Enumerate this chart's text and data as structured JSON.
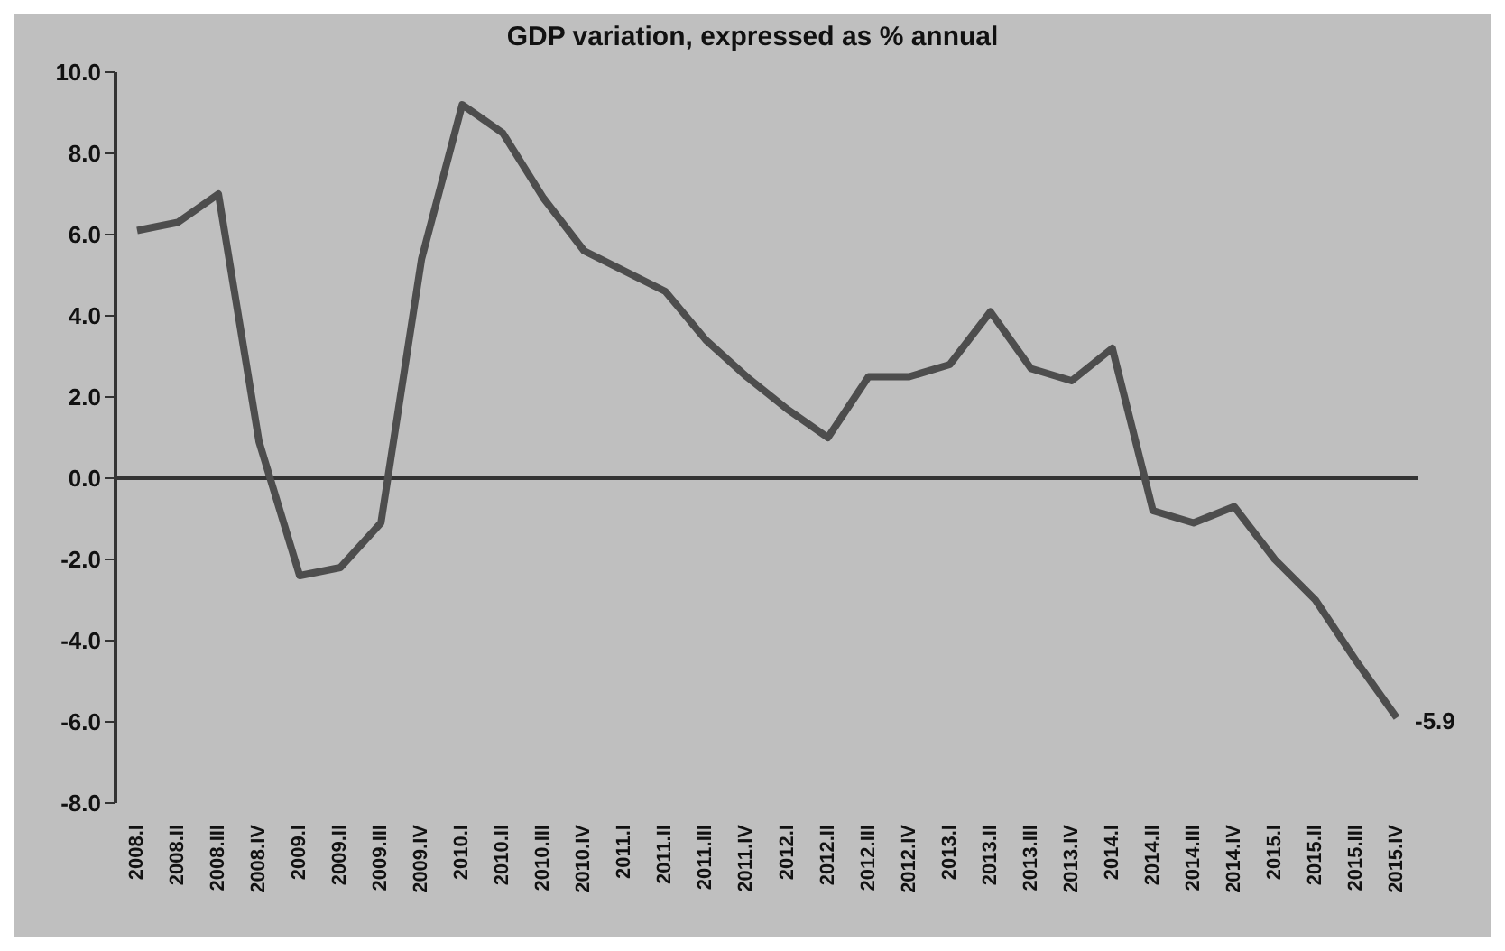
{
  "chart_data": {
    "type": "line",
    "title": "GDP variation, expressed as % annual",
    "categories": [
      "2008.I",
      "2008.II",
      "2008.III",
      "2008.IV",
      "2009.I",
      "2009.II",
      "2009.III",
      "2009.IV",
      "2010.I",
      "2010.II",
      "2010.III",
      "2010.IV",
      "2011.I",
      "2011.II",
      "2011.III",
      "2011.IV",
      "2012.I",
      "2012.II",
      "2012.III",
      "2012.IV",
      "2013.I",
      "2013.II",
      "2013.III",
      "2013.IV",
      "2014.I",
      "2014.II",
      "2014.III",
      "2014.IV",
      "2015.I",
      "2015.II",
      "2015.III",
      "2015.IV"
    ],
    "series": [
      {
        "color": "#4d4d4d",
        "values": [
          6.1,
          6.3,
          7.0,
          0.9,
          -2.4,
          -2.2,
          -1.1,
          5.4,
          9.2,
          8.5,
          6.9,
          5.6,
          5.1,
          4.6,
          3.4,
          2.5,
          1.7,
          1.0,
          2.5,
          2.5,
          2.8,
          4.1,
          2.7,
          2.4,
          3.2,
          -0.8,
          -1.1,
          -0.7,
          -2.0,
          -3.0,
          -4.5,
          -5.9
        ],
        "value_labels": [
          null,
          null,
          null,
          null,
          null,
          null,
          null,
          null,
          null,
          null,
          null,
          null,
          null,
          null,
          null,
          null,
          null,
          null,
          null,
          null,
          null,
          null,
          null,
          null,
          null,
          null,
          null,
          null,
          null,
          null,
          null,
          "-5.9"
        ]
      }
    ],
    "ylim": [
      -8,
      10
    ],
    "yticks": [
      {
        "value": -8,
        "label": "-8.0"
      },
      {
        "value": -6,
        "label": "-6.0"
      },
      {
        "value": -4,
        "label": "-4.0"
      },
      {
        "value": -2,
        "label": "-2.0"
      },
      {
        "value": 0,
        "label": "0.0"
      },
      {
        "value": 2,
        "label": "2.0"
      },
      {
        "value": 4,
        "label": "4.0"
      },
      {
        "value": 6,
        "label": "6.0"
      },
      {
        "value": 8,
        "label": "8.0"
      },
      {
        "value": 10,
        "label": "10.0"
      }
    ],
    "ref_lines": [
      {
        "axis": "y",
        "value": 0,
        "color": "#333333"
      }
    ],
    "grid": false,
    "legend": false,
    "marker": "none",
    "line_style": "solid"
  }
}
